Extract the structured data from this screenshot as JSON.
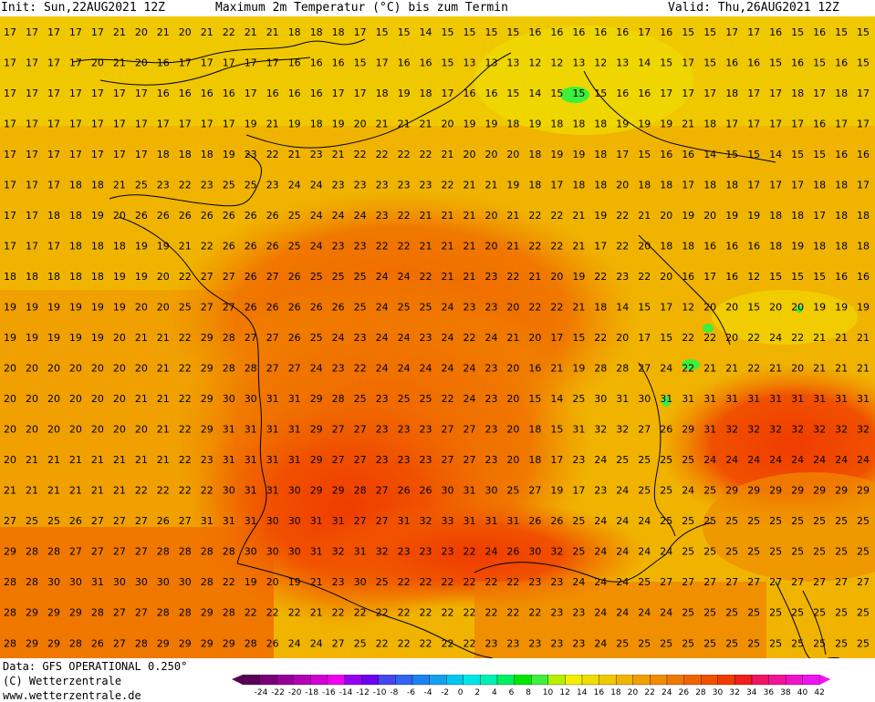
{
  "header": {
    "init": "Init: Sun,22AUG2021 12Z",
    "title": "Maximum 2m Temperatur (°C) bis zum Termin",
    "valid": "Valid: Thu,26AUG2021 12Z"
  },
  "footer": {
    "data_line": "Data: GFS OPERATIONAL 0.250°",
    "copyright": "(C) Wetterzentrale",
    "url": "www.wetterzentrale.de"
  },
  "legend": {
    "ticks": [
      "-24",
      "-22",
      "-20",
      "-18",
      "-16",
      "-14",
      "-12",
      "-10",
      "-8",
      "-6",
      "-4",
      "-2",
      "0",
      "2",
      "4",
      "6",
      "8",
      "10",
      "12",
      "14",
      "16",
      "18",
      "20",
      "22",
      "24",
      "26",
      "28",
      "30",
      "32",
      "34",
      "36",
      "38",
      "40",
      "42"
    ],
    "colors": [
      "#5a005a",
      "#780078",
      "#960096",
      "#b400b4",
      "#d200d2",
      "#f000f0",
      "#9600f0",
      "#6e00f0",
      "#4646f0",
      "#3264f0",
      "#1e82f0",
      "#14a0f0",
      "#00c8f0",
      "#00e6e6",
      "#00f0b4",
      "#00f064",
      "#00e600",
      "#3cf03c",
      "#b4f000",
      "#f0f000",
      "#f0dc00",
      "#f0c800",
      "#f0b400",
      "#f0a000",
      "#f08c00",
      "#f07800",
      "#f06400",
      "#f05000",
      "#f03c00",
      "#f01e1e",
      "#f01464",
      "#f01496",
      "#f014c8",
      "#f014f0"
    ]
  },
  "map": {
    "grid_values": [
      [
        "17",
        "17",
        "17",
        "17",
        "17",
        "21",
        "20",
        "21",
        "20",
        "21",
        "22",
        "21",
        "21",
        "18",
        "18",
        "18",
        "17",
        "15",
        "15",
        "14",
        "15",
        "15",
        "15",
        "15",
        "16",
        "16",
        "16",
        "16",
        "16",
        "17",
        "16",
        "15",
        "15",
        "17",
        "17",
        "16",
        "15",
        "16",
        "15",
        "15"
      ],
      [
        "17",
        "17",
        "17",
        "17",
        "20",
        "21",
        "20",
        "16",
        "17",
        "17",
        "17",
        "17",
        "17",
        "16",
        "16",
        "16",
        "15",
        "17",
        "16",
        "16",
        "15",
        "13",
        "13",
        "13",
        "12",
        "12",
        "13",
        "12",
        "13",
        "14",
        "15",
        "17",
        "15",
        "16",
        "16",
        "15",
        "16",
        "15",
        "16",
        "15"
      ],
      [
        "17",
        "17",
        "17",
        "17",
        "17",
        "17",
        "17",
        "16",
        "16",
        "16",
        "16",
        "17",
        "16",
        "16",
        "16",
        "17",
        "17",
        "18",
        "19",
        "18",
        "17",
        "16",
        "16",
        "15",
        "14",
        "15",
        "15",
        "15",
        "16",
        "16",
        "17",
        "17",
        "17",
        "18",
        "17",
        "17",
        "18",
        "17",
        "18",
        "17"
      ],
      [
        "17",
        "17",
        "17",
        "17",
        "17",
        "17",
        "17",
        "17",
        "17",
        "17",
        "17",
        "19",
        "21",
        "19",
        "18",
        "19",
        "20",
        "21",
        "21",
        "21",
        "20",
        "19",
        "19",
        "18",
        "19",
        "18",
        "18",
        "18",
        "19",
        "19",
        "19",
        "21",
        "18",
        "17",
        "17",
        "17",
        "17",
        "16",
        "17",
        "17"
      ],
      [
        "17",
        "17",
        "17",
        "17",
        "17",
        "17",
        "17",
        "18",
        "18",
        "18",
        "19",
        "23",
        "22",
        "21",
        "23",
        "21",
        "22",
        "22",
        "22",
        "22",
        "21",
        "20",
        "20",
        "20",
        "18",
        "19",
        "19",
        "18",
        "17",
        "15",
        "16",
        "16",
        "14",
        "15",
        "15",
        "14",
        "15",
        "15",
        "16",
        "16"
      ],
      [
        "17",
        "17",
        "17",
        "18",
        "18",
        "21",
        "25",
        "23",
        "22",
        "23",
        "25",
        "25",
        "23",
        "24",
        "24",
        "23",
        "23",
        "23",
        "23",
        "23",
        "22",
        "21",
        "21",
        "19",
        "18",
        "17",
        "18",
        "18",
        "20",
        "18",
        "18",
        "17",
        "18",
        "18",
        "17",
        "17",
        "17",
        "18",
        "18",
        "17"
      ],
      [
        "17",
        "17",
        "18",
        "18",
        "19",
        "20",
        "26",
        "26",
        "26",
        "26",
        "26",
        "26",
        "26",
        "25",
        "24",
        "24",
        "24",
        "23",
        "22",
        "21",
        "21",
        "21",
        "20",
        "21",
        "22",
        "22",
        "21",
        "19",
        "22",
        "21",
        "20",
        "19",
        "20",
        "19",
        "19",
        "18",
        "18",
        "17",
        "18",
        "18"
      ],
      [
        "17",
        "17",
        "17",
        "18",
        "18",
        "18",
        "19",
        "19",
        "21",
        "22",
        "26",
        "26",
        "26",
        "25",
        "24",
        "23",
        "23",
        "22",
        "22",
        "21",
        "21",
        "21",
        "20",
        "21",
        "22",
        "22",
        "21",
        "17",
        "22",
        "20",
        "18",
        "18",
        "16",
        "16",
        "16",
        "18",
        "19",
        "18",
        "18",
        "18"
      ],
      [
        "18",
        "18",
        "18",
        "18",
        "18",
        "19",
        "19",
        "20",
        "22",
        "27",
        "27",
        "26",
        "27",
        "26",
        "25",
        "25",
        "25",
        "24",
        "24",
        "22",
        "21",
        "21",
        "23",
        "22",
        "21",
        "20",
        "19",
        "22",
        "23",
        "22",
        "20",
        "16",
        "17",
        "16",
        "12",
        "15",
        "15",
        "15",
        "16",
        "16"
      ],
      [
        "19",
        "19",
        "19",
        "19",
        "19",
        "19",
        "20",
        "20",
        "25",
        "27",
        "27",
        "26",
        "26",
        "26",
        "26",
        "26",
        "25",
        "24",
        "25",
        "25",
        "24",
        "23",
        "23",
        "20",
        "22",
        "22",
        "21",
        "18",
        "14",
        "15",
        "17",
        "12",
        "20",
        "20",
        "15",
        "20",
        "20",
        "19",
        "19",
        "19"
      ],
      [
        "19",
        "19",
        "19",
        "19",
        "19",
        "20",
        "21",
        "21",
        "22",
        "29",
        "28",
        "27",
        "27",
        "26",
        "25",
        "24",
        "23",
        "24",
        "24",
        "23",
        "24",
        "22",
        "24",
        "21",
        "20",
        "17",
        "15",
        "22",
        "20",
        "17",
        "15",
        "22",
        "22",
        "20",
        "22",
        "24",
        "22",
        "21",
        "21",
        "21"
      ],
      [
        "20",
        "20",
        "20",
        "20",
        "20",
        "20",
        "20",
        "21",
        "22",
        "29",
        "28",
        "28",
        "27",
        "27",
        "24",
        "23",
        "22",
        "24",
        "24",
        "24",
        "24",
        "24",
        "23",
        "20",
        "16",
        "21",
        "19",
        "28",
        "28",
        "27",
        "24",
        "22",
        "21",
        "21",
        "22",
        "21",
        "20",
        "21",
        "21",
        "21"
      ],
      [
        "20",
        "20",
        "20",
        "20",
        "20",
        "20",
        "21",
        "21",
        "22",
        "29",
        "30",
        "30",
        "31",
        "31",
        "29",
        "28",
        "25",
        "23",
        "25",
        "25",
        "22",
        "24",
        "23",
        "20",
        "15",
        "14",
        "25",
        "30",
        "31",
        "30",
        "31",
        "31",
        "31",
        "31",
        "31",
        "31",
        "31",
        "31",
        "31",
        "31"
      ],
      [
        "20",
        "20",
        "20",
        "20",
        "20",
        "20",
        "20",
        "21",
        "22",
        "29",
        "31",
        "31",
        "31",
        "31",
        "29",
        "27",
        "27",
        "23",
        "23",
        "23",
        "27",
        "27",
        "23",
        "20",
        "18",
        "15",
        "31",
        "32",
        "32",
        "27",
        "26",
        "29",
        "31",
        "32",
        "32",
        "32",
        "32",
        "32",
        "32",
        "32"
      ],
      [
        "20",
        "21",
        "21",
        "21",
        "21",
        "21",
        "21",
        "21",
        "22",
        "23",
        "31",
        "31",
        "31",
        "31",
        "29",
        "27",
        "27",
        "23",
        "23",
        "23",
        "27",
        "27",
        "23",
        "20",
        "18",
        "17",
        "23",
        "24",
        "25",
        "25",
        "25",
        "25",
        "24",
        "24",
        "24",
        "24",
        "24",
        "24",
        "24",
        "24"
      ],
      [
        "21",
        "21",
        "21",
        "21",
        "21",
        "21",
        "22",
        "22",
        "22",
        "22",
        "30",
        "31",
        "31",
        "30",
        "29",
        "29",
        "28",
        "27",
        "26",
        "26",
        "30",
        "31",
        "30",
        "25",
        "27",
        "19",
        "17",
        "23",
        "24",
        "25",
        "25",
        "24",
        "25",
        "29",
        "29",
        "29",
        "29",
        "29",
        "29",
        "29"
      ],
      [
        "27",
        "25",
        "25",
        "26",
        "27",
        "27",
        "27",
        "26",
        "27",
        "31",
        "31",
        "31",
        "30",
        "30",
        "31",
        "31",
        "27",
        "27",
        "31",
        "32",
        "33",
        "31",
        "31",
        "31",
        "26",
        "26",
        "25",
        "24",
        "24",
        "24",
        "25",
        "25",
        "25",
        "25",
        "25",
        "25",
        "25",
        "25",
        "25",
        "25"
      ],
      [
        "29",
        "28",
        "28",
        "27",
        "27",
        "27",
        "27",
        "28",
        "28",
        "28",
        "28",
        "30",
        "30",
        "30",
        "31",
        "32",
        "31",
        "32",
        "23",
        "23",
        "23",
        "22",
        "24",
        "26",
        "30",
        "32",
        "25",
        "24",
        "24",
        "24",
        "24",
        "25",
        "25",
        "25",
        "25",
        "25",
        "25",
        "25",
        "25",
        "25"
      ],
      [
        "28",
        "28",
        "30",
        "30",
        "31",
        "30",
        "30",
        "30",
        "30",
        "28",
        "22",
        "19",
        "20",
        "19",
        "21",
        "23",
        "30",
        "25",
        "22",
        "22",
        "22",
        "22",
        "22",
        "22",
        "23",
        "23",
        "24",
        "24",
        "24",
        "25",
        "27",
        "27",
        "27",
        "27",
        "27",
        "27",
        "27",
        "27",
        "27",
        "27"
      ],
      [
        "28",
        "29",
        "29",
        "29",
        "28",
        "27",
        "27",
        "28",
        "28",
        "29",
        "28",
        "22",
        "22",
        "22",
        "21",
        "22",
        "22",
        "22",
        "22",
        "22",
        "22",
        "22",
        "22",
        "22",
        "22",
        "23",
        "23",
        "24",
        "24",
        "24",
        "24",
        "25",
        "25",
        "25",
        "25",
        "25",
        "25",
        "25",
        "25",
        "25"
      ],
      [
        "28",
        "29",
        "29",
        "28",
        "26",
        "27",
        "28",
        "29",
        "29",
        "29",
        "29",
        "28",
        "26",
        "24",
        "24",
        "27",
        "25",
        "22",
        "22",
        "22",
        "22",
        "22",
        "23",
        "23",
        "23",
        "23",
        "23",
        "24",
        "25",
        "25",
        "25",
        "25",
        "25",
        "25",
        "25",
        "25",
        "25",
        "25",
        "25",
        "25"
      ]
    ],
    "regions_note": "2m maximum temperature field over France and surroundings"
  }
}
